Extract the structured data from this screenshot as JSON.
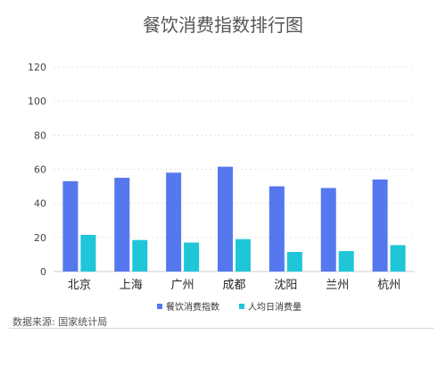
{
  "source_note": "数据来源: 国家统计局",
  "chart_data": {
    "type": "bar",
    "title": "餐饮消费指数排行图",
    "categories": [
      "北京",
      "上海",
      "广州",
      "成都",
      "沈阳",
      "兰州",
      "杭州"
    ],
    "series": [
      {
        "name": "餐饮消费指数",
        "color": "#5578ee",
        "values": [
          53,
          55,
          58,
          61.5,
          50,
          49,
          54
        ]
      },
      {
        "name": "人均日消费量",
        "color": "#1ec6d8",
        "values": [
          21.5,
          18.5,
          17,
          19,
          11.5,
          12,
          15.5
        ]
      }
    ],
    "ylim": [
      0,
      120
    ],
    "yticks": [
      0,
      20,
      40,
      60,
      80,
      100,
      120
    ],
    "grid": true,
    "legend_position": "bottom-center",
    "xlabel": "",
    "ylabel": ""
  }
}
